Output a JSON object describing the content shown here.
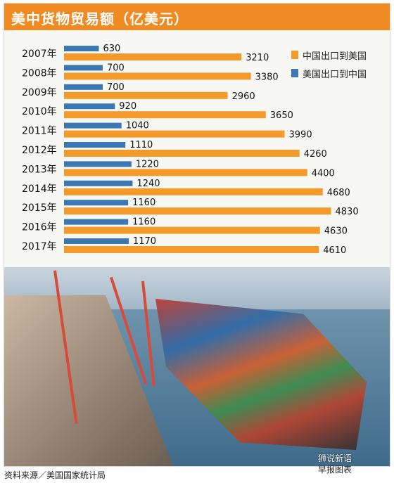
{
  "title": "美中货物贸易额（亿美元）",
  "source": "资料来源／美国国家统计局",
  "credit": {
    "brand": "狮说新语",
    "tag": "早报图表"
  },
  "colors": {
    "china_to_us": "#f39a2b",
    "us_to_china": "#3b78b3",
    "title_bg": "#ef8b22"
  },
  "chart_data": {
    "type": "bar",
    "orientation": "horizontal",
    "categories": [
      "2007年",
      "2008年",
      "2009年",
      "2010年",
      "2011年",
      "2012年",
      "2013年",
      "2014年",
      "2015年",
      "2016年",
      "2017年"
    ],
    "series": [
      {
        "name": "美国出口到中国",
        "color": "#3b78b3",
        "values": [
          630,
          700,
          700,
          920,
          1040,
          1110,
          1220,
          1240,
          1160,
          1160,
          1170
        ]
      },
      {
        "name": "中国出口到美国",
        "color": "#f39a2b",
        "values": [
          3210,
          3380,
          2960,
          3650,
          3990,
          4260,
          4400,
          4680,
          4830,
          4630,
          4610
        ]
      }
    ],
    "legend": {
      "position": "top-right",
      "order": [
        "中国出口到美国",
        "美国出口到中国"
      ]
    },
    "xlim": [
      0,
      4900
    ],
    "grid": false,
    "title": "美中货物贸易额（亿美元）"
  }
}
